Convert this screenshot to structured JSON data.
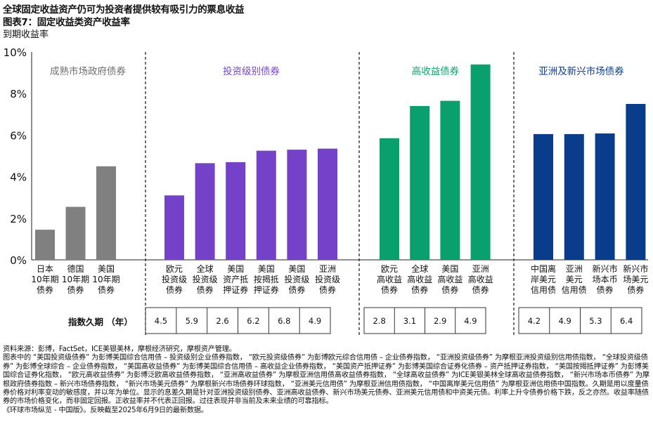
{
  "header": {
    "title": "全球固定收益资产仍可为投资者提供较有吸引力的票息收益",
    "subtitle": "图表7：固定收益类资产收益率",
    "y_axis_title": "到期收益率"
  },
  "chart_data": {
    "type": "bar",
    "ylabel": "到期收益率",
    "ylim": [
      0,
      10
    ],
    "yticks": [
      "0%",
      "2%",
      "4%",
      "6%",
      "8%",
      "10%"
    ],
    "groups": [
      {
        "name": "成熟市场政府债券",
        "color": "#808080",
        "label_color": "#6d6d6d",
        "categories": [
          [
            "日本",
            "10年期",
            "债券"
          ],
          [
            "德国",
            "10年期",
            "债券"
          ],
          [
            "美国",
            "10年期",
            "债券"
          ]
        ],
        "values": [
          1.45,
          2.55,
          4.5
        ],
        "durations": []
      },
      {
        "name": "投资级别债券",
        "color": "#7442c8",
        "label_color": "#7442c8",
        "categories": [
          [
            "欧元",
            "投资级",
            "债券"
          ],
          [
            "全球",
            "投资级",
            "债券"
          ],
          [
            "美国",
            "资产抵",
            "押证券"
          ],
          [
            "美国",
            "按揭抵",
            "押证券"
          ],
          [
            "美国",
            "投资级",
            "债券"
          ],
          [
            "亚洲",
            "投资级",
            "债券"
          ]
        ],
        "values": [
          3.1,
          4.65,
          4.7,
          5.25,
          5.3,
          5.35
        ],
        "durations": [
          "4.5",
          "5.9",
          "2.6",
          "6.2",
          "6.8",
          "4.9"
        ]
      },
      {
        "name": "高收益债券",
        "color": "#0aa06e",
        "label_color": "#0aa06e",
        "categories": [
          [
            "欧元",
            "高收益",
            "债券"
          ],
          [
            "全球",
            "高收益",
            "债券"
          ],
          [
            "美国",
            "高收益",
            "债券"
          ],
          [
            "亚洲",
            "高收益",
            "债券"
          ]
        ],
        "values": [
          5.85,
          7.4,
          7.65,
          9.4
        ],
        "durations": [
          "2.8",
          "3.1",
          "2.9",
          "4.9"
        ]
      },
      {
        "name": "亚洲及新兴市场债券",
        "color": "#0a3c8c",
        "label_color": "#0a3c8c",
        "categories": [
          [
            "中国离",
            "岸美元",
            "信用债"
          ],
          [
            "亚洲",
            "美元",
            "信用债"
          ],
          [
            "新兴市",
            "场本币",
            "债券"
          ],
          [
            "新兴市",
            "场美元",
            "债券"
          ]
        ],
        "values": [
          6.05,
          6.05,
          6.08,
          7.5
        ],
        "durations": [
          "4.2",
          "4.9",
          "5.3",
          "6.4"
        ]
      }
    ],
    "duration_row_label": "指数久期 （年）"
  },
  "notes": {
    "source": "资料来源：彭博，FactSet，ICE美银美林，摩根经济研究，摩根资产管理。",
    "body": "图表中的 “美国投资级债券” 为彭博美国综合信用债 – 投资级别企业债券指数， “欧元投资级债券” 为彭博欧元综合信用债 – 企业债券指数， “亚洲投资级债券” 为摩根亚洲投资级别信用债指数， “全球投资级债券” 为彭博全球综合 – 企业债券指数， “美国高收益债券” 为彭博美国综合信用债 – 高收益企业债券指数， “美国资产抵押证券” 为彭博美国综合证券化债券 – 资产抵押证券指数， “美国按揭抵押证券” 为彭博美国综合证券化指数， “欧元高收益债券” 为彭博泛欧高收益债券指数， “亚洲高收益债券” 为摩根亚洲信用债高收益债券指数， “全球高收益债券” 为ICE美银美林全球高收益债券指数， “新兴市场本币债券” 为摩根政府债券指数 – 新兴市场债券指数， “新兴市场美元债券” 为摩根新兴市场债券环球指数， “亚洲美元信用债” 为摩根亚洲信用债指数， “中国离岸美元信用债” 为摩根亚洲信用债中国指数。久期是用以度量债券价格对利率变动的敏感度，并以年为单位。显示的息差久期是针对亚洲投资级别债券、亚洲高收益债券、新兴市场美元债券、亚洲美元信用债和中资美元债。利率上升令债券价格下跌，反之亦然。收益率随债券的市场价格变化，而非固定回报。正收益率并不代表正回报。过往表现并非当前及未来业绩的可靠指标。",
    "footer": "《环球市场纵览 - 中国版》。反映截至2025年6月9日的最新数据。"
  }
}
